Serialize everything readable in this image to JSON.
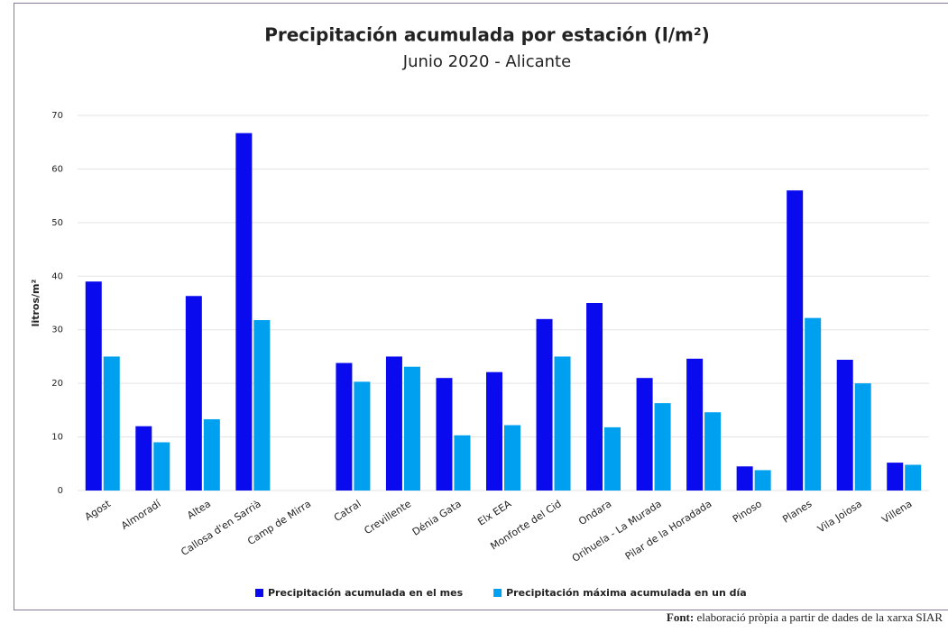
{
  "chart_data": {
    "type": "bar",
    "title": "Precipitación acumulada por estación (l/m²)",
    "subtitle": "Junio 2020 - Alicante",
    "y_label": "litros/m²",
    "categories": [
      "Agost",
      "Almoradí",
      "Altea",
      "Callosa d'en Sarrià",
      "Camp de Mirra",
      "Catral",
      "Crevillente",
      "Dénia Gata",
      "Elx EEA",
      "Monforte del Cid",
      "Ondara",
      "Orihuela - La Murada",
      "Pilar de la Horadada",
      "Pinoso",
      "Planes",
      "Vila Joiosa",
      "Villena"
    ],
    "series": [
      {
        "name": "Precipitación acumulada en el mes",
        "color": "#0a0aee",
        "values": [
          39,
          12,
          36.3,
          66.7,
          0,
          23.8,
          25,
          21,
          22.1,
          32,
          35,
          21,
          24.6,
          4.5,
          56,
          24.4,
          5.2
        ]
      },
      {
        "name": "Precipitación máxima acumulada en un día",
        "color": "#00a0f0",
        "values": [
          25,
          9,
          13.3,
          31.8,
          0,
          20.3,
          23.1,
          10.3,
          12.2,
          25,
          11.8,
          16.3,
          14.6,
          3.8,
          32.2,
          20,
          4.8
        ]
      }
    ],
    "ylim": [
      0,
      70
    ],
    "yticks": [
      0,
      10,
      20,
      30,
      40,
      50,
      60,
      70
    ],
    "grid": true,
    "legend": "bottom"
  },
  "source": {
    "label": "Font:",
    "text": "elaboració pròpia a partir de dades de la xarxa SIAR"
  }
}
